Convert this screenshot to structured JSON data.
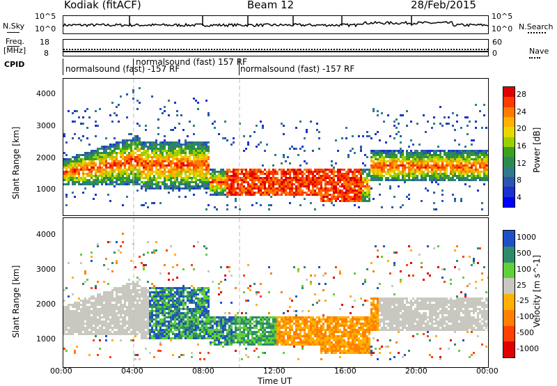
{
  "header": {
    "title": "Kodiak (fitACF)",
    "beam": "Beam 12",
    "date": "28/Feb/2015"
  },
  "status_panels": {
    "nsky_label": "N.Sky",
    "nsearch_label": "N.Search",
    "noise_left_ticks": [
      "10^5",
      "10^0"
    ],
    "noise_right_ticks": [
      "10^5",
      "10^0"
    ],
    "freq_label_1": "Freq.",
    "freq_label_2": "[MHz]",
    "freq_ticks": [
      "18",
      "8"
    ],
    "nave_ticks": [
      "60",
      "0"
    ],
    "nave_label": "Nave",
    "cpid_label": "CPID",
    "cpid_segments": [
      {
        "text": "normalsound (fast) -157 RF"
      },
      {
        "text": "normalsound (fast) 157 RF"
      },
      {
        "text": "normalsound (fast) -157 RF"
      }
    ]
  },
  "colorbars": {
    "power": {
      "label": "Power [dB]",
      "ticks": [
        "28",
        "24",
        "20",
        "16",
        "12",
        "8",
        "4"
      ],
      "colors": [
        "#e00000",
        "#ff3a00",
        "#ff7a00",
        "#ffb000",
        "#e8d800",
        "#9ad000",
        "#3aa020",
        "#2a8a50",
        "#2f7a8a",
        "#2a55b0",
        "#1a30d0",
        "#0000ff"
      ]
    },
    "velocity": {
      "label": "Velocity [m s^-1]",
      "ticks": [
        "1000",
        "500",
        "100",
        "25",
        "-25",
        "-100",
        "-500",
        "-1000"
      ],
      "colors": [
        "#2050c8",
        "#2f8a6a",
        "#5fcf3a",
        "#c8c8c0",
        "#ffb000",
        "#ff8000",
        "#ff4000",
        "#e00000"
      ]
    }
  },
  "chart_data": [
    {
      "type": "heatmap",
      "panel": "power",
      "ylabel": "Slant Range [km]",
      "y_ticks": [
        "4000",
        "3000",
        "2000",
        "1000"
      ],
      "ylim": [
        180,
        4500
      ],
      "xlim": [
        "00:00",
        "24:00"
      ],
      "x_ticks": [
        "00:00",
        "04:00",
        "08:00",
        "12:00",
        "16:00",
        "20:00",
        "00:00"
      ],
      "colorbar": "Power [dB]",
      "colorbar_ticks": [
        28,
        24,
        20,
        16,
        12,
        8,
        4
      ]
    },
    {
      "type": "heatmap",
      "panel": "velocity",
      "ylabel": "Slant Range [km]",
      "y_ticks": [
        "4000",
        "3000",
        "2000",
        "1000"
      ],
      "ylim": [
        180,
        4500
      ],
      "xlim": [
        "00:00",
        "24:00"
      ],
      "x_ticks": [
        "00:00",
        "04:00",
        "08:00",
        "12:00",
        "16:00",
        "20:00",
        "00:00"
      ],
      "xlabel": "Time UT",
      "colorbar": "Velocity [m s^-1]",
      "colorbar_ticks": [
        1000,
        500,
        100,
        25,
        -25,
        -100,
        -500,
        -1000
      ]
    }
  ]
}
